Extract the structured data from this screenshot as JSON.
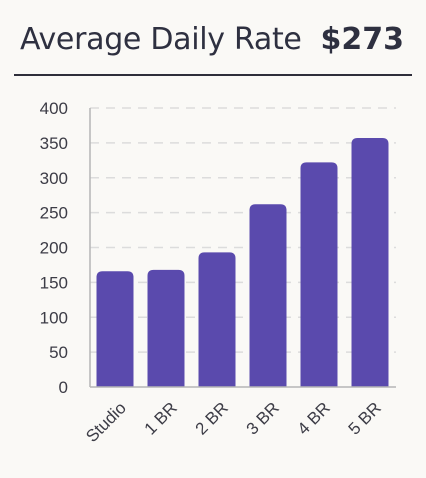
{
  "header": {
    "title": "Average Daily Rate",
    "value": "$273"
  },
  "colors": {
    "bar": "#5a4aad",
    "grid": "#dcdcdc",
    "axis": "#b5b5b5",
    "text": "#2e3040"
  },
  "chart_data": {
    "type": "bar",
    "categories": [
      "Studio",
      "1 BR",
      "2 BR",
      "3 BR",
      "4 BR",
      "5 BR"
    ],
    "values": [
      166,
      168,
      193,
      262,
      322,
      357
    ],
    "title": "",
    "xlabel": "",
    "ylabel": "",
    "ylim": [
      0,
      400
    ],
    "yticks": [
      0,
      50,
      100,
      150,
      200,
      250,
      300,
      350,
      400
    ],
    "grid": true,
    "grid_style": "dashed",
    "legend": "none"
  }
}
